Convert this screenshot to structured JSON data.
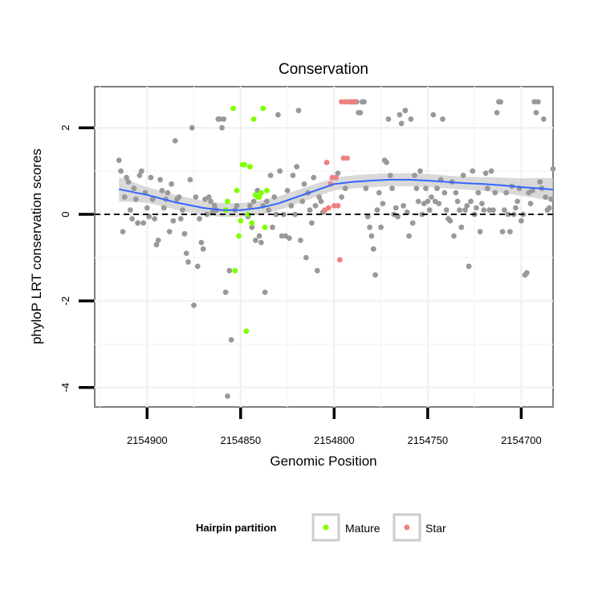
{
  "chart_data": {
    "type": "scatter",
    "title": "Conservation",
    "xlabel": "Genomic Position",
    "ylabel": "phyloP LRT conservation scores",
    "x_reversed": true,
    "xlim": [
      2154683,
      2154928
    ],
    "ylim": [
      -4.45,
      2.95
    ],
    "x_ticks": [
      2154900,
      2154850,
      2154800,
      2154750,
      2154700
    ],
    "x_tick_labels": [
      "2154900",
      "2154850",
      "2154800",
      "2154750",
      "2154700"
    ],
    "y_ticks": [
      -4,
      -2,
      0,
      2
    ],
    "y_tick_labels": [
      "-4",
      "-2",
      "0",
      "2"
    ],
    "reference_line": {
      "y": 0,
      "style": "dashed"
    },
    "legend": {
      "title": "Hairpin partition",
      "placement": "bottom",
      "entries": [
        {
          "label": "Mature",
          "color": "#7fff00"
        },
        {
          "label": "Star",
          "color": "#f08080"
        }
      ]
    },
    "colors": {
      "other": "#999999",
      "mature": "#7fff00",
      "star": "#f08080",
      "smooth": "#3366ff",
      "band": "#cccccc"
    },
    "series": [
      {
        "name": "Other",
        "points": [
          [
            2154915,
            1.25
          ],
          [
            2154914,
            1.0
          ],
          [
            2154913,
            -0.4
          ],
          [
            2154912,
            0.4
          ],
          [
            2154911,
            0.85
          ],
          [
            2154910,
            0.75
          ],
          [
            2154909,
            0.1
          ],
          [
            2154908,
            -0.1
          ],
          [
            2154907,
            0.6
          ],
          [
            2154906,
            0.35
          ],
          [
            2154905,
            -0.2
          ],
          [
            2154904,
            0.9
          ],
          [
            2154903,
            1.0
          ],
          [
            2154902,
            -0.2
          ],
          [
            2154901,
            0.5
          ],
          [
            2154900,
            0.15
          ],
          [
            2154899,
            -0.05
          ],
          [
            2154898,
            0.85
          ],
          [
            2154897,
            0.35
          ],
          [
            2154896,
            -0.1
          ],
          [
            2154895,
            -0.7
          ],
          [
            2154894,
            -0.6
          ],
          [
            2154893,
            0.8
          ],
          [
            2154892,
            0.55
          ],
          [
            2154891,
            0.15
          ],
          [
            2154890,
            0.35
          ],
          [
            2154889,
            0.5
          ],
          [
            2154888,
            -0.4
          ],
          [
            2154887,
            0.7
          ],
          [
            2154886,
            -0.15
          ],
          [
            2154885,
            1.7
          ],
          [
            2154884,
            0.35
          ],
          [
            2154883,
            0.4
          ],
          [
            2154882,
            -0.1
          ],
          [
            2154881,
            0.1
          ],
          [
            2154880,
            -0.45
          ],
          [
            2154879,
            -0.9
          ],
          [
            2154878,
            -1.1
          ],
          [
            2154877,
            0.8
          ],
          [
            2154876,
            2.0
          ],
          [
            2154875,
            -2.1
          ],
          [
            2154874,
            0.4
          ],
          [
            2154873,
            -1.2
          ],
          [
            2154872,
            -0.1
          ],
          [
            2154871,
            -0.65
          ],
          [
            2154870,
            -0.8
          ],
          [
            2154869,
            0.35
          ],
          [
            2154868,
            0.0
          ],
          [
            2154867,
            0.4
          ],
          [
            2154866,
            0.3
          ],
          [
            2154865,
            0.05
          ],
          [
            2154864,
            0.2
          ],
          [
            2154863,
            0.1
          ],
          [
            2154862,
            2.2
          ],
          [
            2154861,
            2.2
          ],
          [
            2154860,
            2.0
          ],
          [
            2154859,
            2.2
          ],
          [
            2154858,
            -1.8
          ],
          [
            2154857,
            -4.2
          ],
          [
            2154856,
            -1.3
          ],
          [
            2154855,
            -2.9
          ],
          [
            2154853,
            0.1
          ],
          [
            2154852,
            0.2
          ],
          [
            2154846,
            -0.05
          ],
          [
            2154845,
            0.2
          ],
          [
            2154844,
            -0.3
          ],
          [
            2154843,
            0.3
          ],
          [
            2154842,
            -0.6
          ],
          [
            2154841,
            0.55
          ],
          [
            2154840,
            -0.5
          ],
          [
            2154839,
            -0.65
          ],
          [
            2154838,
            0.2
          ],
          [
            2154837,
            -1.8
          ],
          [
            2154836,
            0.3
          ],
          [
            2154835,
            0.1
          ],
          [
            2154834,
            0.9
          ],
          [
            2154833,
            -0.3
          ],
          [
            2154832,
            0.4
          ],
          [
            2154831,
            0.0
          ],
          [
            2154830,
            2.3
          ],
          [
            2154829,
            1.0
          ],
          [
            2154828,
            -0.5
          ],
          [
            2154827,
            0.0
          ],
          [
            2154826,
            -0.5
          ],
          [
            2154825,
            0.55
          ],
          [
            2154824,
            -0.55
          ],
          [
            2154823,
            0.2
          ],
          [
            2154822,
            0.9
          ],
          [
            2154821,
            0.0
          ],
          [
            2154820,
            1.1
          ],
          [
            2154819,
            2.4
          ],
          [
            2154818,
            -0.6
          ],
          [
            2154817,
            0.3
          ],
          [
            2154816,
            0.7
          ],
          [
            2154815,
            -1.0
          ],
          [
            2154814,
            0.5
          ],
          [
            2154813,
            0.1
          ],
          [
            2154812,
            -0.2
          ],
          [
            2154811,
            0.85
          ],
          [
            2154810,
            0.2
          ],
          [
            2154809,
            -1.3
          ],
          [
            2154808,
            0.4
          ],
          [
            2154807,
            0.3
          ],
          [
            2154806,
            0.05
          ],
          [
            2154798,
            0.95
          ],
          [
            2154796,
            0.4
          ],
          [
            2154794,
            0.6
          ],
          [
            2154791,
            2.6
          ],
          [
            2154790,
            2.6
          ],
          [
            2154789,
            2.6
          ],
          [
            2154788,
            2.6
          ],
          [
            2154787,
            2.35
          ],
          [
            2154786,
            2.35
          ],
          [
            2154785,
            2.6
          ],
          [
            2154784,
            2.6
          ],
          [
            2154783,
            0.6
          ],
          [
            2154782,
            -0.05
          ],
          [
            2154781,
            -0.3
          ],
          [
            2154780,
            -0.5
          ],
          [
            2154779,
            -0.8
          ],
          [
            2154778,
            -1.4
          ],
          [
            2154777,
            0.1
          ],
          [
            2154776,
            0.5
          ],
          [
            2154775,
            -0.3
          ],
          [
            2154774,
            0.25
          ],
          [
            2154773,
            1.25
          ],
          [
            2154772,
            1.2
          ],
          [
            2154771,
            2.2
          ],
          [
            2154770,
            0.9
          ],
          [
            2154769,
            0.6
          ],
          [
            2154768,
            0.0
          ],
          [
            2154767,
            0.15
          ],
          [
            2154766,
            -0.05
          ],
          [
            2154765,
            2.3
          ],
          [
            2154764,
            2.1
          ],
          [
            2154763,
            0.2
          ],
          [
            2154762,
            2.4
          ],
          [
            2154761,
            0.05
          ],
          [
            2154760,
            -0.5
          ],
          [
            2154759,
            2.2
          ],
          [
            2154758,
            -0.2
          ],
          [
            2154757,
            0.9
          ],
          [
            2154756,
            0.6
          ],
          [
            2154755,
            0.3
          ],
          [
            2154754,
            1.0
          ],
          [
            2154753,
            0.0
          ],
          [
            2154752,
            0.25
          ],
          [
            2154751,
            0.6
          ],
          [
            2154750,
            0.3
          ],
          [
            2154749,
            0.1
          ],
          [
            2154748,
            0.4
          ],
          [
            2154747,
            2.3
          ],
          [
            2154746,
            0.3
          ],
          [
            2154745,
            0.6
          ],
          [
            2154744,
            0.25
          ],
          [
            2154743,
            0.8
          ],
          [
            2154742,
            2.2
          ],
          [
            2154741,
            0.5
          ],
          [
            2154740,
            0.1
          ],
          [
            2154739,
            -0.1
          ],
          [
            2154738,
            -0.15
          ],
          [
            2154737,
            0.75
          ],
          [
            2154736,
            -0.5
          ],
          [
            2154735,
            0.5
          ],
          [
            2154734,
            0.3
          ],
          [
            2154733,
            0.1
          ],
          [
            2154732,
            -0.3
          ],
          [
            2154731,
            0.9
          ],
          [
            2154730,
            0.1
          ],
          [
            2154729,
            0.2
          ],
          [
            2154728,
            -1.2
          ],
          [
            2154727,
            0.3
          ],
          [
            2154726,
            1.0
          ],
          [
            2154725,
            0.0
          ],
          [
            2154724,
            0.15
          ],
          [
            2154723,
            0.5
          ],
          [
            2154722,
            -0.4
          ],
          [
            2154721,
            0.25
          ],
          [
            2154720,
            0.1
          ],
          [
            2154719,
            0.95
          ],
          [
            2154718,
            0.6
          ],
          [
            2154717,
            0.1
          ],
          [
            2154716,
            1.0
          ],
          [
            2154715,
            0.1
          ],
          [
            2154714,
            0.5
          ],
          [
            2154713,
            2.35
          ],
          [
            2154712,
            2.6
          ],
          [
            2154711,
            2.6
          ],
          [
            2154710,
            -0.4
          ],
          [
            2154709,
            0.1
          ],
          [
            2154708,
            0.5
          ],
          [
            2154707,
            0.0
          ],
          [
            2154706,
            -0.4
          ],
          [
            2154705,
            0.65
          ],
          [
            2154704,
            0.0
          ],
          [
            2154703,
            0.15
          ],
          [
            2154702,
            0.3
          ],
          [
            2154701,
            0.6
          ],
          [
            2154700,
            -0.15
          ],
          [
            2154699,
            0.0
          ],
          [
            2154698,
            -1.4
          ],
          [
            2154697,
            -1.35
          ],
          [
            2154696,
            0.5
          ],
          [
            2154695,
            0.25
          ],
          [
            2154694,
            0.55
          ],
          [
            2154693,
            2.6
          ],
          [
            2154692,
            2.35
          ],
          [
            2154691,
            2.6
          ],
          [
            2154690,
            0.75
          ],
          [
            2154689,
            0.6
          ],
          [
            2154688,
            2.2
          ],
          [
            2154687,
            0.4
          ],
          [
            2154686,
            0.1
          ],
          [
            2154685,
            0.15
          ],
          [
            2154684,
            0.35
          ],
          [
            2154683,
            1.05
          ]
        ]
      },
      {
        "name": "Mature",
        "points": [
          [
            2154858,
            0.1
          ],
          [
            2154857,
            0.3
          ],
          [
            2154854,
            2.45
          ],
          [
            2154853,
            -1.3
          ],
          [
            2154852,
            0.55
          ],
          [
            2154851,
            -0.5
          ],
          [
            2154850,
            -0.15
          ],
          [
            2154849,
            1.15
          ],
          [
            2154848,
            1.15
          ],
          [
            2154847,
            -2.7
          ],
          [
            2154846,
            0.0
          ],
          [
            2154845,
            1.1
          ],
          [
            2154844,
            -0.2
          ],
          [
            2154843,
            2.2
          ],
          [
            2154842,
            0.45
          ],
          [
            2154841,
            0.4
          ],
          [
            2154840,
            0.4
          ],
          [
            2154839,
            0.5
          ],
          [
            2154838,
            2.45
          ],
          [
            2154837,
            -0.3
          ],
          [
            2154836,
            0.55
          ]
        ]
      },
      {
        "name": "Star",
        "points": [
          [
            2154805,
            0.1
          ],
          [
            2154804,
            1.2
          ],
          [
            2154803,
            0.15
          ],
          [
            2154802,
            0.7
          ],
          [
            2154801,
            0.85
          ],
          [
            2154800,
            0.2
          ],
          [
            2154799,
            0.85
          ],
          [
            2154798,
            0.2
          ],
          [
            2154797,
            -1.05
          ],
          [
            2154796,
            2.6
          ],
          [
            2154795,
            1.3
          ],
          [
            2154794,
            2.6
          ],
          [
            2154793,
            1.3
          ],
          [
            2154792,
            2.6
          ],
          [
            2154791,
            2.6
          ],
          [
            2154790,
            2.6
          ],
          [
            2154789,
            2.6
          ]
        ]
      }
    ],
    "smooth": {
      "method": "loess",
      "x": [
        2154915,
        2154900,
        2154885,
        2154870,
        2154860,
        2154850,
        2154840,
        2154830,
        2154820,
        2154810,
        2154800,
        2154790,
        2154780,
        2154770,
        2154760,
        2154750,
        2154740,
        2154730,
        2154720,
        2154710,
        2154700,
        2154690,
        2154683
      ],
      "y": [
        0.58,
        0.45,
        0.28,
        0.15,
        0.1,
        0.1,
        0.15,
        0.25,
        0.4,
        0.55,
        0.7,
        0.75,
        0.78,
        0.8,
        0.8,
        0.78,
        0.75,
        0.72,
        0.7,
        0.67,
        0.63,
        0.6,
        0.57
      ],
      "band": [
        0.28,
        0.18,
        0.17,
        0.16,
        0.16,
        0.16,
        0.16,
        0.16,
        0.16,
        0.15,
        0.15,
        0.15,
        0.15,
        0.15,
        0.15,
        0.15,
        0.15,
        0.15,
        0.16,
        0.18,
        0.2,
        0.24,
        0.27
      ]
    }
  }
}
